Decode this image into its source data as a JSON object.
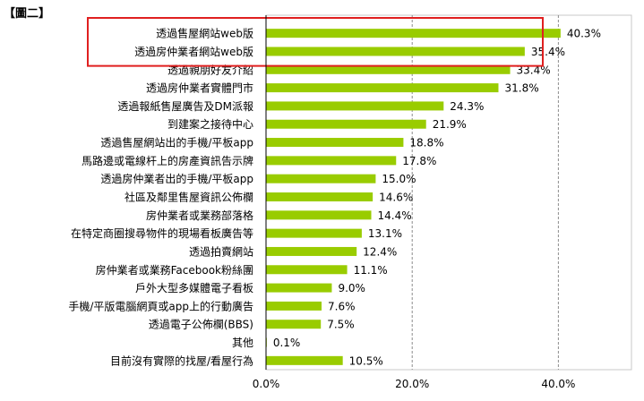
{
  "figure_label": "【圖二】",
  "chart_data": {
    "type": "bar",
    "orientation": "horizontal",
    "categories": [
      "透過售屋網站web版",
      "透過房仲業者網站web版",
      "透過親朋好友介紹",
      "透過房仲業者實體門市",
      "透過報紙售屋廣告及DM派報",
      "到建案之接待中心",
      "透過售屋網站出的手機/平板app",
      "馬路邊或電線杆上的房產資訊告示牌",
      "透過房仲業者出的手機/平板app",
      "社區及鄰里售屋資訊公佈欄",
      "房仲業者或業務部落格",
      "在特定商圈搜尋物件的現場看板廣告等",
      "透過拍賣網站",
      "房仲業者或業務Facebook粉絲團",
      "戶外大型多媒體電子看板",
      "手機/平版電腦網頁或app上的行動廣告",
      "透過電子公佈欄(BBS)",
      "其他",
      "目前沒有實際的找屋/看屋行為"
    ],
    "values": [
      40.3,
      35.4,
      33.4,
      31.8,
      24.3,
      21.9,
      18.8,
      17.8,
      15.0,
      14.6,
      14.4,
      13.1,
      12.4,
      11.1,
      9.0,
      7.6,
      7.5,
      0.1,
      10.5
    ],
    "value_labels": [
      "40.3%",
      "35.4%",
      "33.4%",
      "31.8%",
      "24.3%",
      "21.9%",
      "18.8%",
      "17.8%",
      "15.0%",
      "14.6%",
      "14.4%",
      "13.1%",
      "12.4%",
      "11.1%",
      "9.0%",
      "7.6%",
      "7.5%",
      "0.1%",
      "10.5%"
    ],
    "x_ticks": [
      "0.0%",
      "20.0%",
      "40.0%"
    ],
    "xlim": [
      0,
      50
    ],
    "grid": "vertical dashed at 20% and 40%",
    "bar_color": "#99cc00",
    "highlight_box_color": "#e02020",
    "highlighted_categories": [
      "透過售屋網站web版",
      "透過房仲業者網站web版"
    ]
  }
}
